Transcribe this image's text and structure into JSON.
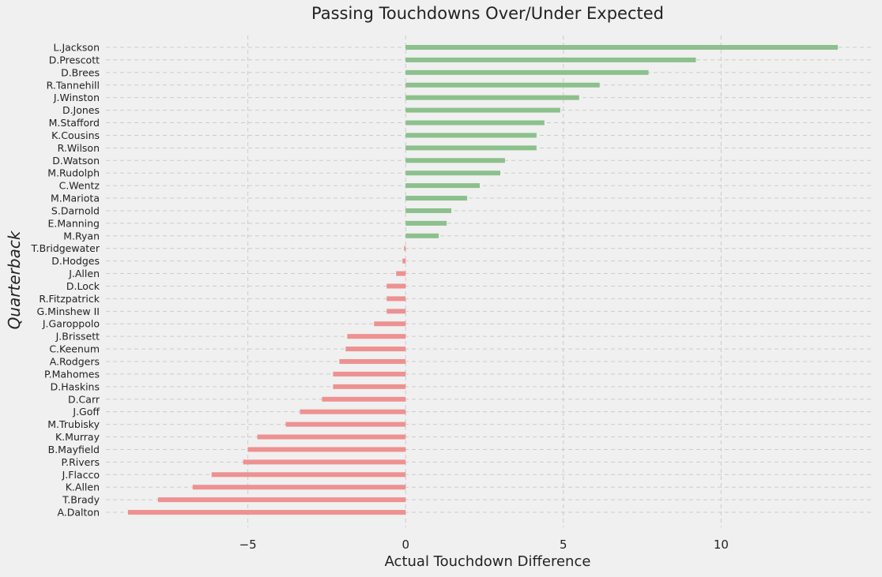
{
  "chart_data": {
    "type": "bar",
    "orientation": "horizontal",
    "title": "Passing Touchdowns Over/Under Expected",
    "xlabel": "Actual Touchdown Difference",
    "ylabel": "Quarterback",
    "xlim": [
      -9.5,
      14.8
    ],
    "xticks": [
      -5,
      0,
      5,
      10
    ],
    "xtick_labels": [
      "−5",
      "0",
      "5",
      "10"
    ],
    "grid": true,
    "colors": {
      "positive": "#8cc08c",
      "negative": "#ee9191",
      "background": "#f0f0f0"
    },
    "categories": [
      "L.Jackson",
      "D.Prescott",
      "D.Brees",
      "R.Tannehill",
      "J.Winston",
      "D.Jones",
      "M.Stafford",
      "K.Cousins",
      "R.Wilson",
      "D.Watson",
      "M.Rudolph",
      "C.Wentz",
      "M.Mariota",
      "S.Darnold",
      "E.Manning",
      "M.Ryan",
      "T.Bridgewater",
      "D.Hodges",
      "J.Allen",
      "D.Lock",
      "R.Fitzpatrick",
      "G.Minshew II",
      "J.Garoppolo",
      "J.Brissett",
      "C.Keenum",
      "A.Rodgers",
      "P.Mahomes",
      "D.Haskins",
      "D.Carr",
      "J.Goff",
      "M.Trubisky",
      "K.Murray",
      "B.Mayfield",
      "P.Rivers",
      "J.Flacco",
      "K.Allen",
      "T.Brady",
      "A.Dalton"
    ],
    "values": [
      13.7,
      9.2,
      7.7,
      6.15,
      5.5,
      4.9,
      4.4,
      4.15,
      4.15,
      3.15,
      3.0,
      2.35,
      1.95,
      1.45,
      1.3,
      1.05,
      -0.05,
      -0.1,
      -0.3,
      -0.6,
      -0.6,
      -0.6,
      -1.0,
      -1.85,
      -1.9,
      -2.1,
      -2.3,
      -2.3,
      -2.65,
      -3.35,
      -3.8,
      -4.7,
      -5.0,
      -5.15,
      -6.15,
      -6.75,
      -7.85,
      -8.8
    ]
  }
}
